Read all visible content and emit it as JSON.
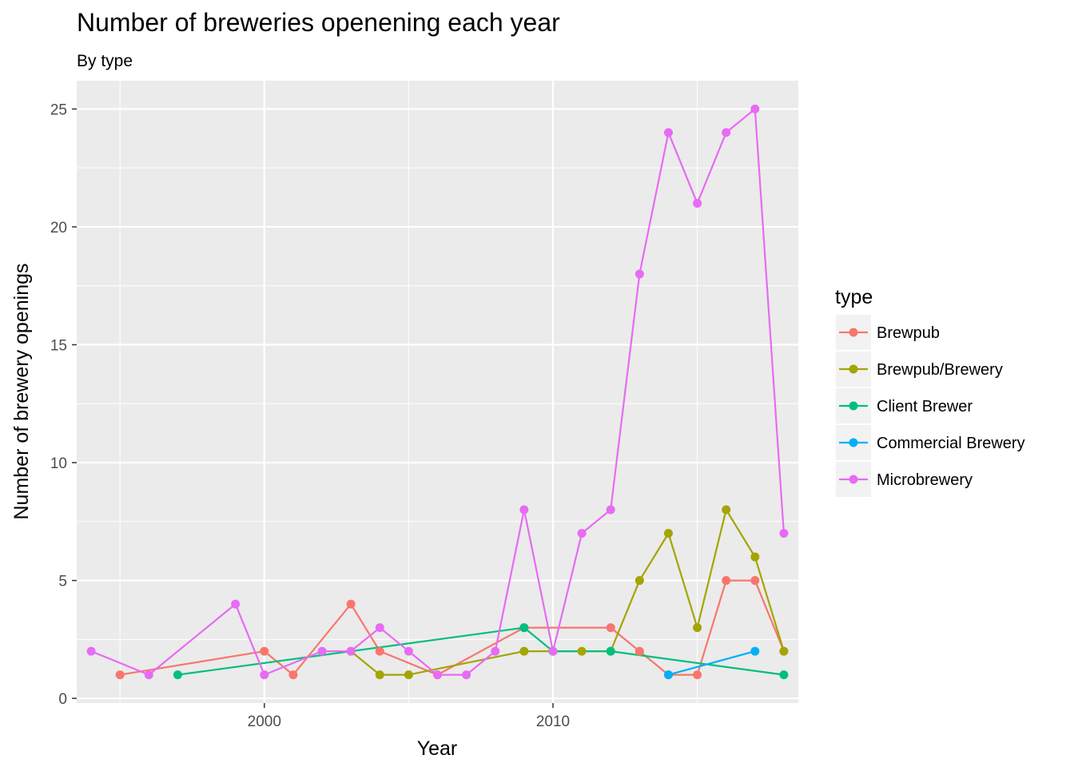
{
  "chart_data": {
    "type": "line",
    "title": "Number of breweries openening each year",
    "subtitle": "By type",
    "xlabel": "Year",
    "ylabel": "Number of brewery openings",
    "xlim": [
      1993.5,
      2018.5
    ],
    "ylim": [
      -0.2,
      26.2
    ],
    "x_ticks": [
      2000,
      2010
    ],
    "y_ticks": [
      0,
      5,
      10,
      15,
      20,
      25
    ],
    "grid": true,
    "legend": {
      "title": "type",
      "position": "right"
    },
    "series": [
      {
        "name": "Brewpub",
        "color": "#F8766D",
        "points": [
          [
            1995,
            1
          ],
          [
            2000,
            2
          ],
          [
            2001,
            1
          ],
          [
            2003,
            4
          ],
          [
            2004,
            2
          ],
          [
            2006,
            1
          ],
          [
            2009,
            3
          ],
          [
            2012,
            3
          ],
          [
            2013,
            2
          ],
          [
            2014,
            1
          ],
          [
            2015,
            1
          ],
          [
            2016,
            5
          ],
          [
            2017,
            5
          ],
          [
            2018,
            2
          ]
        ]
      },
      {
        "name": "Brewpub/Brewery",
        "color": "#A3A500",
        "points": [
          [
            2003,
            2
          ],
          [
            2004,
            1
          ],
          [
            2005,
            1
          ],
          [
            2009,
            2
          ],
          [
            2010,
            2
          ],
          [
            2011,
            2
          ],
          [
            2012,
            2
          ],
          [
            2013,
            5
          ],
          [
            2014,
            7
          ],
          [
            2015,
            3
          ],
          [
            2016,
            8
          ],
          [
            2017,
            6
          ],
          [
            2018,
            2
          ]
        ]
      },
      {
        "name": "Client Brewer",
        "color": "#00BF7D",
        "points": [
          [
            1997,
            1
          ],
          [
            2009,
            3
          ],
          [
            2010,
            2
          ],
          [
            2012,
            2
          ],
          [
            2018,
            1
          ]
        ]
      },
      {
        "name": "Commercial Brewery",
        "color": "#00B0F6",
        "points": [
          [
            2014,
            1
          ],
          [
            2017,
            2
          ]
        ]
      },
      {
        "name": "Microbrewery",
        "color": "#E76BF3",
        "points": [
          [
            1994,
            2
          ],
          [
            1996,
            1
          ],
          [
            1999,
            4
          ],
          [
            2000,
            1
          ],
          [
            2002,
            2
          ],
          [
            2003,
            2
          ],
          [
            2004,
            3
          ],
          [
            2005,
            2
          ],
          [
            2006,
            1
          ],
          [
            2007,
            1
          ],
          [
            2008,
            2
          ],
          [
            2009,
            8
          ],
          [
            2010,
            2
          ],
          [
            2011,
            7
          ],
          [
            2012,
            8
          ],
          [
            2013,
            18
          ],
          [
            2014,
            24
          ],
          [
            2015,
            21
          ],
          [
            2016,
            24
          ],
          [
            2017,
            25
          ],
          [
            2018,
            7
          ]
        ]
      }
    ]
  }
}
